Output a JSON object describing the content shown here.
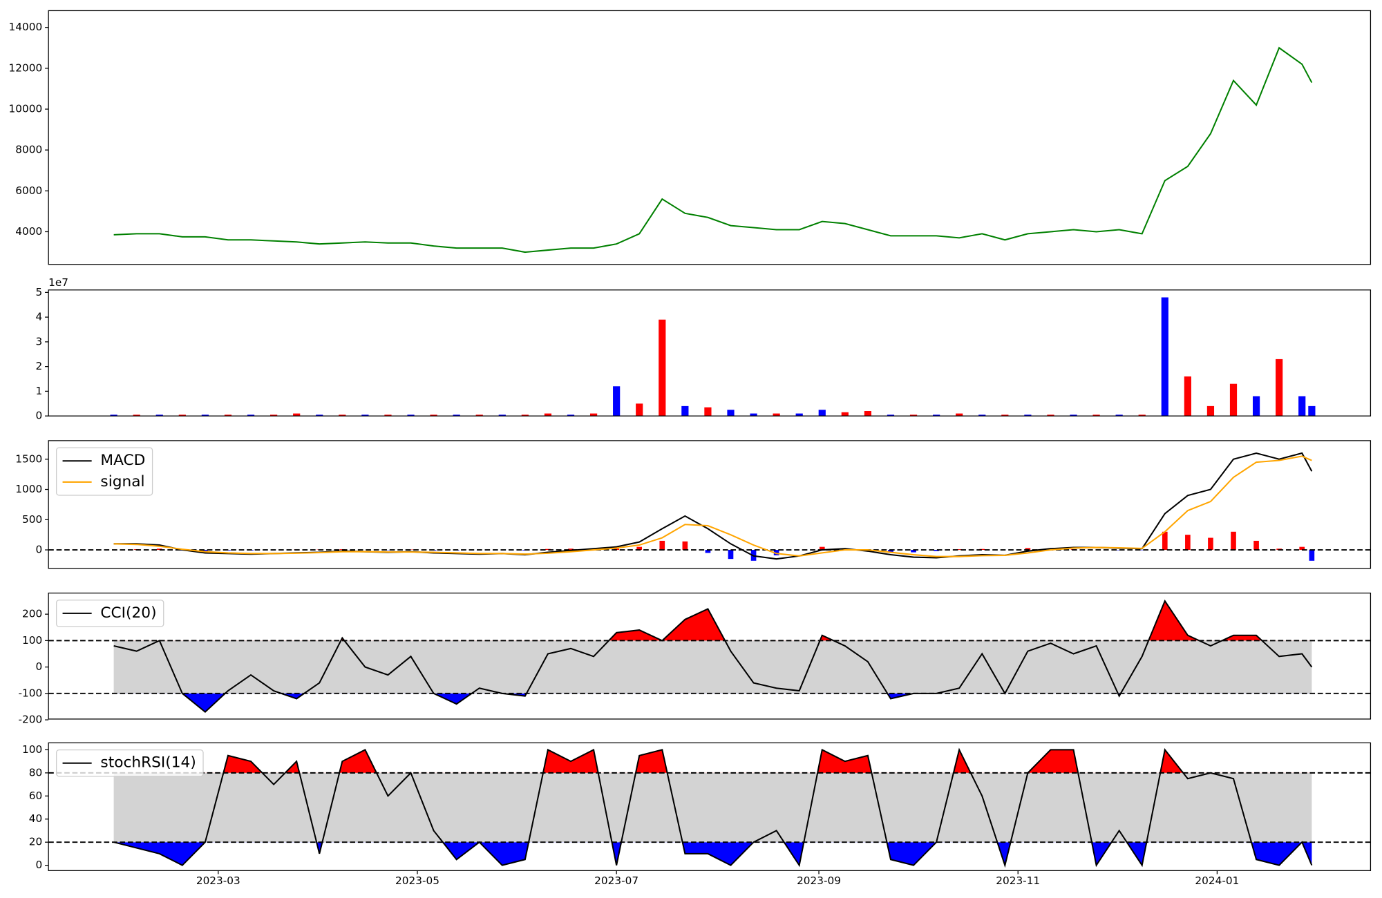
{
  "chart_data": [
    {
      "type": "line",
      "x": [
        27,
        34,
        41,
        48,
        55,
        62,
        69,
        76,
        83,
        90,
        97,
        104,
        111,
        118,
        125,
        132,
        139,
        146,
        153,
        160,
        167,
        174,
        181,
        188,
        195,
        202,
        209,
        216,
        223,
        230,
        237,
        244,
        251,
        258,
        265,
        272,
        279,
        286,
        293,
        300,
        307,
        314,
        321,
        328,
        335,
        342,
        349,
        356,
        363,
        370,
        377,
        384,
        391,
        394
      ],
      "xlim": [
        7,
        412
      ],
      "ylim": [
        2400,
        14820
      ],
      "yticks": [
        4000,
        6000,
        8000,
        10000,
        12000,
        14000
      ],
      "series": [
        {
          "color": "green",
          "values": [
            3850,
            3900,
            3900,
            3750,
            3750,
            3600,
            3600,
            3550,
            3500,
            3400,
            3450,
            3500,
            3450,
            3450,
            3300,
            3200,
            3200,
            3200,
            3000,
            3100,
            3200,
            3200,
            3400,
            3900,
            5600,
            4900,
            4700,
            4300,
            4200,
            4100,
            4100,
            4500,
            4400,
            4100,
            3800,
            3800,
            3800,
            3700,
            3900,
            3600,
            3900,
            4000,
            4100,
            4000,
            4100,
            3900,
            6500,
            7200,
            8800,
            11400,
            10200,
            13000,
            12200,
            11300
          ]
        }
      ]
    },
    {
      "type": "bar",
      "x": [
        27,
        34,
        41,
        48,
        55,
        62,
        69,
        76,
        83,
        90,
        97,
        104,
        111,
        118,
        125,
        132,
        139,
        146,
        153,
        160,
        167,
        174,
        181,
        188,
        195,
        202,
        209,
        216,
        223,
        230,
        237,
        244,
        251,
        258,
        265,
        272,
        279,
        286,
        293,
        300,
        307,
        314,
        321,
        328,
        335,
        342,
        349,
        356,
        363,
        370,
        377,
        384,
        391,
        394
      ],
      "xlim": [
        7,
        412
      ],
      "ylim": [
        0,
        5.1
      ],
      "yticks": [
        0,
        1,
        2,
        3,
        4,
        5
      ],
      "offset_label": "1e7",
      "values": [
        0.05,
        0.05,
        0.05,
        0.05,
        0.05,
        0.05,
        0.05,
        0.05,
        0.1,
        0.05,
        0.05,
        0.05,
        0.05,
        0.05,
        0.05,
        0.05,
        0.05,
        0.05,
        0.05,
        0.1,
        0.05,
        0.1,
        1.2,
        0.5,
        3.9,
        0.4,
        0.35,
        0.25,
        0.1,
        0.1,
        0.1,
        0.25,
        0.15,
        0.2,
        0.05,
        0.05,
        0.05,
        0.1,
        0.05,
        0.05,
        0.05,
        0.05,
        0.05,
        0.05,
        0.05,
        0.05,
        4.8,
        1.6,
        0.4,
        1.3,
        0.8,
        2.3,
        0.8,
        0.4
      ],
      "colors": [
        "blue",
        "red",
        "blue",
        "red",
        "blue",
        "red",
        "blue",
        "red",
        "red",
        "blue",
        "red",
        "blue",
        "red",
        "blue",
        "red",
        "blue",
        "red",
        "blue",
        "red",
        "red",
        "blue",
        "red",
        "blue",
        "red",
        "red",
        "blue",
        "red",
        "blue",
        "blue",
        "red",
        "blue",
        "blue",
        "red",
        "red",
        "blue",
        "red",
        "blue",
        "red",
        "blue",
        "red",
        "blue",
        "red",
        "blue",
        "red",
        "blue",
        "red",
        "blue",
        "red",
        "red",
        "red",
        "blue",
        "red",
        "blue",
        "blue"
      ]
    },
    {
      "type": "line",
      "x": [
        27,
        34,
        41,
        48,
        55,
        62,
        69,
        76,
        83,
        90,
        97,
        104,
        111,
        118,
        125,
        132,
        139,
        146,
        153,
        160,
        167,
        174,
        181,
        188,
        195,
        202,
        209,
        216,
        223,
        230,
        237,
        244,
        251,
        258,
        265,
        272,
        279,
        286,
        293,
        300,
        307,
        314,
        321,
        328,
        335,
        342,
        349,
        356,
        363,
        370,
        377,
        384,
        391,
        394
      ],
      "xlim": [
        7,
        412
      ],
      "ylim": [
        -306,
        1807
      ],
      "yticks": [
        0,
        500,
        1000,
        1500
      ],
      "hlines": [
        0
      ],
      "legend": "upper left",
      "series": [
        {
          "name": "MACD",
          "color": "black",
          "values": [
            100,
            100,
            80,
            0,
            -50,
            -60,
            -70,
            -60,
            -50,
            -40,
            -20,
            -30,
            -40,
            -30,
            -50,
            -60,
            -70,
            -60,
            -80,
            -40,
            -10,
            20,
            50,
            130,
            350,
            560,
            350,
            100,
            -100,
            -150,
            -100,
            0,
            20,
            -20,
            -80,
            -120,
            -130,
            -100,
            -80,
            -90,
            -20,
            20,
            40,
            40,
            30,
            20,
            600,
            900,
            1000,
            1500,
            1600,
            1500,
            1600,
            1300
          ]
        },
        {
          "name": "signal",
          "color": "orange",
          "values": [
            100,
            90,
            60,
            10,
            -30,
            -50,
            -60,
            -60,
            -55,
            -45,
            -30,
            -30,
            -35,
            -35,
            -40,
            -50,
            -60,
            -60,
            -70,
            -55,
            -30,
            0,
            30,
            80,
            200,
            420,
            400,
            250,
            80,
            -60,
            -100,
            -50,
            0,
            0,
            -40,
            -80,
            -110,
            -110,
            -95,
            -90,
            -50,
            0,
            30,
            40,
            35,
            25,
            300,
            650,
            800,
            1200,
            1450,
            1480,
            1550,
            1480
          ]
        }
      ],
      "histogram": [
        0,
        10,
        20,
        -10,
        -20,
        -10,
        -10,
        0,
        5,
        5,
        10,
        0,
        -5,
        5,
        -10,
        -10,
        -10,
        0,
        -10,
        15,
        20,
        20,
        20,
        50,
        150,
        140,
        -50,
        -150,
        -180,
        -90,
        0,
        50,
        20,
        -20,
        -40,
        -40,
        -20,
        10,
        15,
        0,
        30,
        20,
        10,
        0,
        -5,
        -5,
        300,
        250,
        200,
        300,
        150,
        20,
        50,
        -180
      ],
      "up_color": "red",
      "down_color": "blue"
    },
    {
      "type": "line",
      "x": [
        27,
        34,
        41,
        48,
        55,
        62,
        69,
        76,
        83,
        90,
        97,
        104,
        111,
        118,
        125,
        132,
        139,
        146,
        153,
        160,
        167,
        174,
        181,
        188,
        195,
        202,
        209,
        216,
        223,
        230,
        237,
        244,
        251,
        258,
        265,
        272,
        279,
        286,
        293,
        300,
        307,
        314,
        321,
        328,
        335,
        342,
        349,
        356,
        363,
        370,
        377,
        384,
        391,
        394
      ],
      "xlim": [
        7,
        412
      ],
      "ylim": [
        -197,
        280
      ],
      "yticks": [
        -200,
        -100,
        0,
        100,
        200
      ],
      "hlines": [
        100,
        -100
      ],
      "legend": "upper left",
      "band_color": "lightgray",
      "fill_colors": [
        "red",
        "blue"
      ],
      "series": [
        {
          "name": "CCI(20)",
          "color": "black",
          "values": [
            80,
            60,
            100,
            -100,
            -170,
            -90,
            -30,
            -90,
            -120,
            -60,
            110,
            0,
            -30,
            40,
            -100,
            -140,
            -80,
            -100,
            -110,
            50,
            70,
            40,
            130,
            140,
            100,
            180,
            220,
            60,
            -60,
            -80,
            -90,
            120,
            80,
            20,
            -120,
            -100,
            -100,
            -80,
            50,
            -100,
            60,
            90,
            50,
            80,
            -110,
            40,
            250,
            120,
            80,
            120,
            120,
            40,
            50,
            0
          ]
        }
      ]
    },
    {
      "type": "line",
      "x": [
        27,
        34,
        41,
        48,
        55,
        62,
        69,
        76,
        83,
        90,
        97,
        104,
        111,
        118,
        125,
        132,
        139,
        146,
        153,
        160,
        167,
        174,
        181,
        188,
        195,
        202,
        209,
        216,
        223,
        230,
        237,
        244,
        251,
        258,
        265,
        272,
        279,
        286,
        293,
        300,
        307,
        314,
        321,
        328,
        335,
        342,
        349,
        356,
        363,
        370,
        377,
        384,
        391,
        394
      ],
      "xlim": [
        7,
        412
      ],
      "ylim": [
        -4.6,
        106
      ],
      "yticks": [
        0,
        20,
        40,
        60,
        80,
        100
      ],
      "hlines": [
        80,
        20
      ],
      "legend": "upper left",
      "band_color": "lightgray",
      "fill_colors": [
        "red",
        "blue"
      ],
      "xticks": [
        {
          "value": 59,
          "label": "2023-03"
        },
        {
          "value": 120,
          "label": "2023-05"
        },
        {
          "value": 181,
          "label": "2023-07"
        },
        {
          "value": 243,
          "label": "2023-09"
        },
        {
          "value": 304,
          "label": "2023-11"
        },
        {
          "value": 365,
          "label": "2024-01"
        }
      ],
      "series": [
        {
          "name": "stochRSI(14)",
          "color": "black",
          "values": [
            20,
            15,
            10,
            0,
            20,
            95,
            90,
            70,
            90,
            10,
            90,
            100,
            60,
            80,
            30,
            5,
            20,
            0,
            5,
            100,
            90,
            100,
            0,
            95,
            100,
            10,
            10,
            0,
            20,
            30,
            0,
            100,
            90,
            95,
            5,
            0,
            20,
            100,
            60,
            0,
            80,
            100,
            100,
            0,
            30,
            0,
            100,
            75,
            80,
            75,
            5,
            0,
            20,
            0
          ]
        }
      ]
    }
  ]
}
